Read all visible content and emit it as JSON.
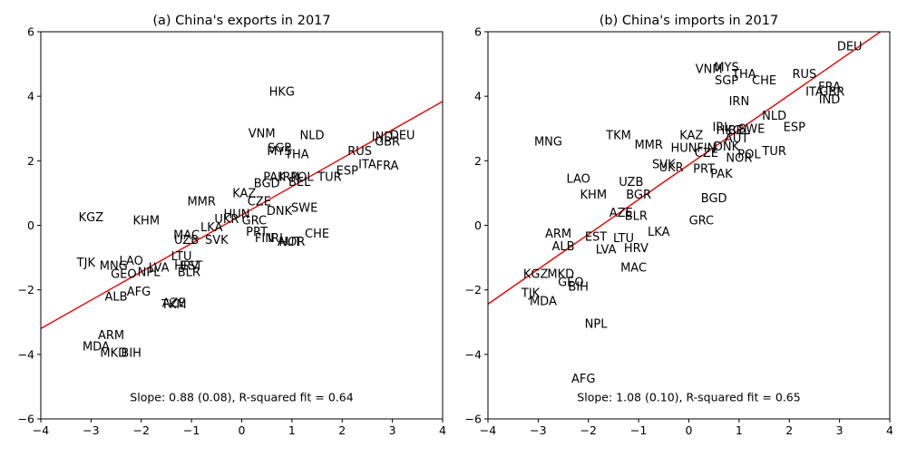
{
  "chart_data": [
    {
      "type": "scatter",
      "title": "(a) China's exports in 2017",
      "annotation": "Slope: 0.88 (0.08), R-squared fit = 0.64",
      "xlim": [
        -4,
        4
      ],
      "ylim": [
        -6,
        6
      ],
      "xticks": [
        -4,
        -3,
        -2,
        -1,
        0,
        1,
        2,
        3,
        4
      ],
      "yticks": [
        -6,
        -4,
        -2,
        0,
        2,
        4,
        6
      ],
      "fit_line": {
        "slope": 0.88,
        "intercept": 0.32
      },
      "points": [
        {
          "label": "HKG",
          "x": 0.8,
          "y": 4.15
        },
        {
          "label": "VNM",
          "x": 0.4,
          "y": 2.85
        },
        {
          "label": "NLD",
          "x": 1.4,
          "y": 2.8
        },
        {
          "label": "IND",
          "x": 2.8,
          "y": 2.75
        },
        {
          "label": "DEU",
          "x": 3.2,
          "y": 2.8
        },
        {
          "label": "GBR",
          "x": 2.9,
          "y": 2.6
        },
        {
          "label": "SGP",
          "x": 0.75,
          "y": 2.4
        },
        {
          "label": "MYS",
          "x": 0.75,
          "y": 2.3
        },
        {
          "label": "THA",
          "x": 1.1,
          "y": 2.2
        },
        {
          "label": "RUS",
          "x": 2.35,
          "y": 2.3
        },
        {
          "label": "ITA",
          "x": 2.5,
          "y": 1.9
        },
        {
          "label": "FRA",
          "x": 2.9,
          "y": 1.85
        },
        {
          "label": "ESP",
          "x": 2.1,
          "y": 1.7
        },
        {
          "label": "PAK",
          "x": 0.65,
          "y": 1.5
        },
        {
          "label": "IRN",
          "x": 0.95,
          "y": 1.5
        },
        {
          "label": "POL",
          "x": 1.2,
          "y": 1.5
        },
        {
          "label": "TUR",
          "x": 1.75,
          "y": 1.5
        },
        {
          "label": "BEL",
          "x": 1.15,
          "y": 1.35
        },
        {
          "label": "BGD",
          "x": 0.5,
          "y": 1.3
        },
        {
          "label": "KAZ",
          "x": 0.05,
          "y": 1.0
        },
        {
          "label": "CZE",
          "x": 0.35,
          "y": 0.75
        },
        {
          "label": "MMR",
          "x": -0.8,
          "y": 0.75
        },
        {
          "label": "SWE",
          "x": 1.25,
          "y": 0.55
        },
        {
          "label": "DNK",
          "x": 0.75,
          "y": 0.45
        },
        {
          "label": "HUN",
          "x": -0.1,
          "y": 0.35
        },
        {
          "label": "GRC",
          "x": 0.25,
          "y": 0.15
        },
        {
          "label": "UKR",
          "x": -0.3,
          "y": 0.2
        },
        {
          "label": "LKA",
          "x": -0.6,
          "y": -0.05
        },
        {
          "label": "KGZ",
          "x": -3.0,
          "y": 0.25
        },
        {
          "label": "KHM",
          "x": -1.9,
          "y": 0.15
        },
        {
          "label": "PRT",
          "x": 0.3,
          "y": -0.2
        },
        {
          "label": "CHE",
          "x": 1.5,
          "y": -0.25
        },
        {
          "label": "MAC",
          "x": -1.1,
          "y": -0.3
        },
        {
          "label": "UZB",
          "x": -1.1,
          "y": -0.45
        },
        {
          "label": "SVK",
          "x": -0.5,
          "y": -0.45
        },
        {
          "label": "FIN",
          "x": 0.45,
          "y": -0.4
        },
        {
          "label": "IRL",
          "x": 0.7,
          "y": -0.4
        },
        {
          "label": "NOR",
          "x": 1.0,
          "y": -0.5
        },
        {
          "label": "AUT",
          "x": 0.95,
          "y": -0.5
        },
        {
          "label": "LTU",
          "x": -1.2,
          "y": -0.95
        },
        {
          "label": "TJK",
          "x": -3.1,
          "y": -1.15
        },
        {
          "label": "LAO",
          "x": -2.2,
          "y": -1.1
        },
        {
          "label": "MNG",
          "x": -2.55,
          "y": -1.25
        },
        {
          "label": "HRV",
          "x": -1.1,
          "y": -1.25
        },
        {
          "label": "EST",
          "x": -1.0,
          "y": -1.25
        },
        {
          "label": "LVA",
          "x": -1.65,
          "y": -1.3
        },
        {
          "label": "BLR",
          "x": -1.05,
          "y": -1.45
        },
        {
          "label": "GEO",
          "x": -2.35,
          "y": -1.5
        },
        {
          "label": "NPL",
          "x": -1.85,
          "y": -1.45
        },
        {
          "label": "AFG",
          "x": -2.05,
          "y": -2.05
        },
        {
          "label": "ALB",
          "x": -2.5,
          "y": -2.2
        },
        {
          "label": "AZE",
          "x": -1.35,
          "y": -2.4
        },
        {
          "label": "TKM",
          "x": -1.35,
          "y": -2.45
        },
        {
          "label": "ARM",
          "x": -2.6,
          "y": -3.4
        },
        {
          "label": "MDA",
          "x": -2.9,
          "y": -3.75
        },
        {
          "label": "MKD",
          "x": -2.55,
          "y": -3.95
        },
        {
          "label": "BIH",
          "x": -2.2,
          "y": -3.95
        }
      ]
    },
    {
      "type": "scatter",
      "title": "(b) China's imports in 2017",
      "annotation": "Slope: 1.08 (0.10), R-squared fit = 0.65",
      "xlim": [
        -4,
        4
      ],
      "ylim": [
        -6,
        6
      ],
      "xticks": [
        -4,
        -3,
        -2,
        -1,
        0,
        1,
        2,
        3,
        4
      ],
      "yticks": [
        -6,
        -4,
        -2,
        0,
        2,
        4,
        6
      ],
      "fit_line": {
        "slope": 1.08,
        "intercept": 1.88
      },
      "points": [
        {
          "label": "DEU",
          "x": 3.2,
          "y": 5.55
        },
        {
          "label": "MYS",
          "x": 0.75,
          "y": 4.9
        },
        {
          "label": "VNM",
          "x": 0.4,
          "y": 4.85
        },
        {
          "label": "THA",
          "x": 1.1,
          "y": 4.7
        },
        {
          "label": "RUS",
          "x": 2.3,
          "y": 4.7
        },
        {
          "label": "SGP",
          "x": 0.75,
          "y": 4.5
        },
        {
          "label": "CHE",
          "x": 1.5,
          "y": 4.5
        },
        {
          "label": "FRA",
          "x": 2.8,
          "y": 4.3
        },
        {
          "label": "GBR",
          "x": 2.85,
          "y": 4.15
        },
        {
          "label": "ITA",
          "x": 2.5,
          "y": 4.15
        },
        {
          "label": "IRN",
          "x": 1.0,
          "y": 3.85
        },
        {
          "label": "IND",
          "x": 2.8,
          "y": 3.9
        },
        {
          "label": "NLD",
          "x": 1.7,
          "y": 3.4
        },
        {
          "label": "ESP",
          "x": 2.1,
          "y": 3.05
        },
        {
          "label": "IRL",
          "x": 0.65,
          "y": 3.05
        },
        {
          "label": "SGP2",
          "x": 1.0,
          "y": 3.0
        },
        {
          "label": "HKG",
          "x": 0.8,
          "y": 2.95
        },
        {
          "label": "BEL",
          "x": 1.0,
          "y": 2.95
        },
        {
          "label": "SWE",
          "x": 1.25,
          "y": 3.0
        },
        {
          "label": "KAZ",
          "x": 0.05,
          "y": 2.8
        },
        {
          "label": "AUT",
          "x": 0.95,
          "y": 2.7
        },
        {
          "label": "TKM",
          "x": -1.4,
          "y": 2.8
        },
        {
          "label": "MNG",
          "x": -2.8,
          "y": 2.6
        },
        {
          "label": "MMR",
          "x": -0.8,
          "y": 2.5
        },
        {
          "label": "HUN",
          "x": -0.1,
          "y": 2.4
        },
        {
          "label": "FIN",
          "x": 0.35,
          "y": 2.4
        },
        {
          "label": "DNK",
          "x": 0.75,
          "y": 2.45
        },
        {
          "label": "CZE",
          "x": 0.35,
          "y": 2.25
        },
        {
          "label": "TUR",
          "x": 1.7,
          "y": 2.3
        },
        {
          "label": "POL",
          "x": 1.2,
          "y": 2.2
        },
        {
          "label": "NOR",
          "x": 1.0,
          "y": 2.1
        },
        {
          "label": "SVK",
          "x": -0.5,
          "y": 1.9
        },
        {
          "label": "UKR",
          "x": -0.35,
          "y": 1.8
        },
        {
          "label": "PRT",
          "x": 0.3,
          "y": 1.75
        },
        {
          "label": "PAK",
          "x": 0.65,
          "y": 1.6
        },
        {
          "label": "LAO",
          "x": -2.2,
          "y": 1.45
        },
        {
          "label": "UZB",
          "x": -1.15,
          "y": 1.35
        },
        {
          "label": "KHM",
          "x": -1.9,
          "y": 0.95
        },
        {
          "label": "BGR",
          "x": -1.0,
          "y": 0.95
        },
        {
          "label": "BGD",
          "x": 0.5,
          "y": 0.85
        },
        {
          "label": "AZE",
          "x": -1.35,
          "y": 0.4
        },
        {
          "label": "BLR",
          "x": -1.05,
          "y": 0.3
        },
        {
          "label": "GRC",
          "x": 0.25,
          "y": 0.15
        },
        {
          "label": "ARM",
          "x": -2.6,
          "y": -0.25
        },
        {
          "label": "LKA",
          "x": -0.6,
          "y": -0.2
        },
        {
          "label": "EST",
          "x": -1.85,
          "y": -0.35
        },
        {
          "label": "LTU",
          "x": -1.3,
          "y": -0.4
        },
        {
          "label": "ALB",
          "x": -2.5,
          "y": -0.65
        },
        {
          "label": "LVA",
          "x": -1.65,
          "y": -0.75
        },
        {
          "label": "HRV",
          "x": -1.05,
          "y": -0.7
        },
        {
          "label": "MAC",
          "x": -1.1,
          "y": -1.3
        },
        {
          "label": "KGZ",
          "x": -3.05,
          "y": -1.5
        },
        {
          "label": "MKD",
          "x": -2.55,
          "y": -1.5
        },
        {
          "label": "GEO",
          "x": -2.35,
          "y": -1.75
        },
        {
          "label": "BIH",
          "x": -2.2,
          "y": -1.9
        },
        {
          "label": "TJK",
          "x": -3.15,
          "y": -2.1
        },
        {
          "label": "MDA",
          "x": -2.9,
          "y": -2.35
        },
        {
          "label": "NPL",
          "x": -1.85,
          "y": -3.05
        },
        {
          "label": "AFG",
          "x": -2.1,
          "y": -4.75
        }
      ]
    }
  ]
}
